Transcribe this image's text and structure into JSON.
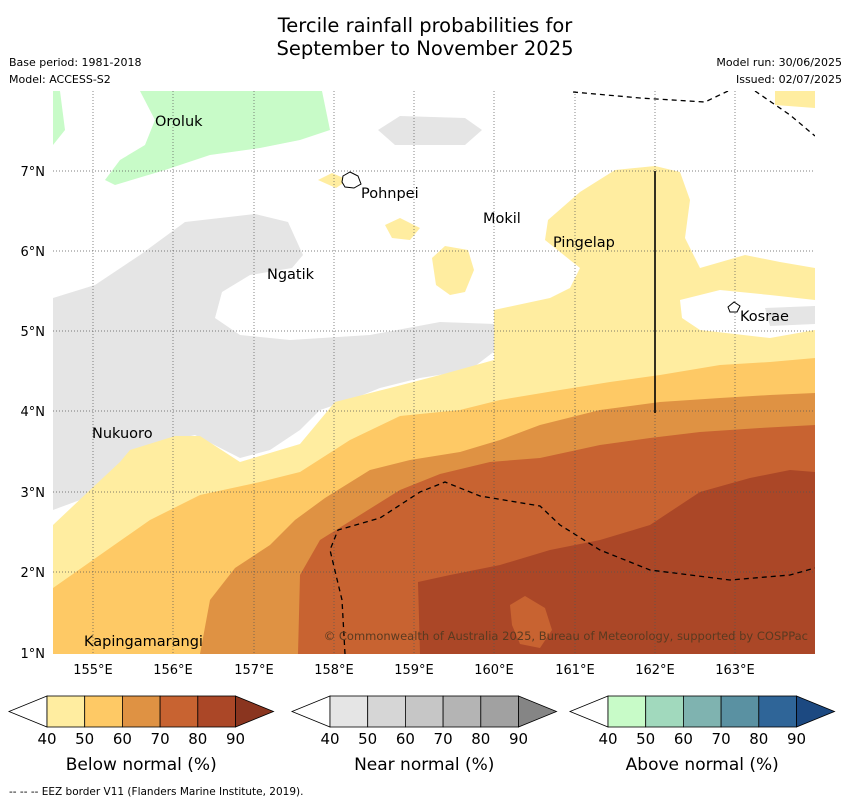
{
  "header": {
    "title_line1": "Tercile rainfall probabilities for",
    "title_line2": "September to November 2025",
    "base_period": "Base period: 1981-2018",
    "model": "Model: ACCESS-S2",
    "model_run": "Model run: 30/06/2025",
    "issued": "Issued: 02/07/2025"
  },
  "map": {
    "lat_labels": [
      "7°N",
      "6°N",
      "5°N",
      "4°N",
      "3°N",
      "2°N",
      "1°N"
    ],
    "lon_labels": [
      "155°E",
      "156°E",
      "157°E",
      "158°E",
      "159°E",
      "160°E",
      "161°E",
      "162°E",
      "163°E"
    ],
    "places": [
      "Oroluk",
      "Pohnpei",
      "Mokil",
      "Pingelap",
      "Ngatik",
      "Kosrae",
      "Nukuoro",
      "Kapingamarangi"
    ],
    "copyright": "© Commonwealth of Australia 2025, Bureau of Meteorology, supported by COSPPac"
  },
  "colorbars": [
    {
      "label": "Below normal (%)",
      "ticks": [
        "40",
        "50",
        "60",
        "70",
        "80",
        "90"
      ],
      "colors": [
        "#ffeda0",
        "#fec965",
        "#df9243",
        "#c86331",
        "#ab4727",
        "#8a351f"
      ]
    },
    {
      "label": "Near normal (%)",
      "ticks": [
        "40",
        "50",
        "60",
        "70",
        "80",
        "90"
      ],
      "colors": [
        "#e5e5e5",
        "#d6d6d6",
        "#c6c6c6",
        "#b4b4b4",
        "#a1a1a1",
        "#858585"
      ]
    },
    {
      "label": "Above normal (%)",
      "ticks": [
        "40",
        "50",
        "60",
        "70",
        "80",
        "90"
      ],
      "colors": [
        "#c8fbc8",
        "#a1d9bd",
        "#7fb3b0",
        "#5a91a2",
        "#2f6598",
        "#1c4981"
      ]
    }
  ],
  "footer": "--  --  -- EEZ border V11 (Flanders Marine Institute, 2019)."
}
